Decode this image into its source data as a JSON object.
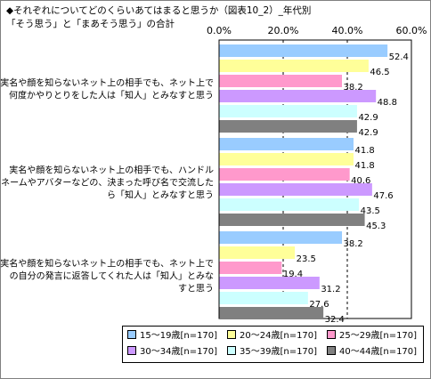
{
  "title_line1": "◆それぞれについてどのくらいあてはまると思うか（図表10_2）_年代別",
  "title_line2": "「そう思う」と「まあそう思う」の合計",
  "chart_data": {
    "type": "bar",
    "orientation": "horizontal",
    "xlim": [
      0,
      60
    ],
    "ticks": [
      "0.0%",
      "20.0%",
      "40.0%",
      "60.0%"
    ],
    "tick_values": [
      0,
      20,
      40,
      60
    ],
    "grid": "dashed vertical lines",
    "legend_position": "bottom",
    "categories": [
      [
        "実名や顔を知らないネット上の相手でも、ネット上で",
        "何度かやりとりをした人は「知人」とみなすと思う"
      ],
      [
        "実名や顔を知らないネット上の相手でも、ハンドル",
        "ネームやアバターなどの、決まった呼び名で交流した",
        "ら「知人」とみなすと思う"
      ],
      [
        "実名や顔を知らないネット上の相手でも、ネット上で",
        "の自分の発言に返答してくれた人は「知人」とみな",
        "すと思う"
      ]
    ],
    "series": [
      {
        "name": "15～19歳[n=170]",
        "color": "#99ccff",
        "values": [
          52.4,
          41.8,
          38.2
        ]
      },
      {
        "name": "20～24歳[n=170]",
        "color": "#ffff99",
        "values": [
          46.5,
          41.8,
          23.5
        ]
      },
      {
        "name": "25～29歳[n=170]",
        "color": "#ff99cc",
        "values": [
          38.2,
          40.6,
          19.4
        ]
      },
      {
        "name": "30～34歳[n=170]",
        "color": "#cc99ff",
        "values": [
          48.8,
          47.6,
          31.2
        ]
      },
      {
        "name": "35～39歳[n=170]",
        "color": "#ccffff",
        "values": [
          42.9,
          43.5,
          27.6
        ]
      },
      {
        "name": "40～44歳[n=170]",
        "color": "#808080",
        "values": [
          42.9,
          45.3,
          32.4
        ]
      }
    ]
  }
}
